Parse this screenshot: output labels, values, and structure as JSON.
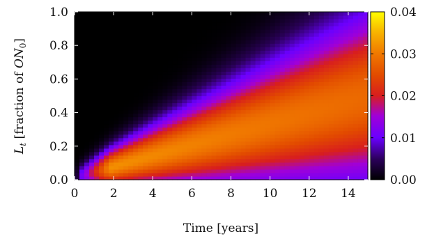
{
  "chart_data": {
    "type": "heatmap",
    "title": "",
    "xlabel": "Time [years]",
    "ylabel": "L_t [fraction of ON_0]",
    "ylabel_parts": {
      "var": "L",
      "sub": "t",
      "pre": " [fraction of ",
      "ital": "ON",
      "sub2": "0",
      "post": "]"
    },
    "xlim": [
      0,
      15
    ],
    "ylim": [
      0,
      1
    ],
    "xticks": [
      "0",
      "2",
      "4",
      "6",
      "8",
      "10",
      "12",
      "14"
    ],
    "yticks": [
      "0.0",
      "0.2",
      "0.4",
      "0.6",
      "0.8",
      "1.0"
    ],
    "colorbar": {
      "range": [
        0,
        0.04
      ],
      "ticks": [
        "0.00",
        "0.01",
        "0.02",
        "0.03",
        "0.04"
      ],
      "colormap": "gnuplot (black-purple-red-orange-yellow)"
    },
    "grid": false,
    "density_description": "ridge of highest density starts near y=0.02 at t≈2 (value≈0.035) and rises roughly linearly to y≈0.5 at t=15 while spreading; low density (~0) near y=1"
  }
}
